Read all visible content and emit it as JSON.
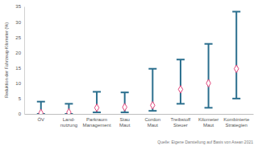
{
  "chart_data": {
    "type": "range",
    "y_label": "Reduktion der Fahrzeug-Kilometer (%)",
    "source": "Quelle: Eigene Darstellung auf Basis von Asean 2021",
    "categories": [
      "ÖV",
      "Land-\nnutzung",
      "Parkraum\nManagement",
      "Stau\nMaut",
      "Cordon\nMaut",
      "Treibstoff\nSteuer",
      "Kilometer\nMaut",
      "Kombinierte\nStrategien"
    ],
    "values": [
      0.3,
      0.5,
      2,
      2.2,
      2.8,
      8,
      10,
      14.7
    ],
    "min": [
      0,
      0,
      0.5,
      0.5,
      1,
      3.3,
      2,
      5
    ],
    "max": [
      4,
      3.3,
      7.2,
      7,
      14.7,
      17.7,
      22.8,
      33.3
    ],
    "color": "#2b6f8e",
    "marker": "diamond",
    "ylim": [
      0,
      35
    ],
    "yticks": [
      0,
      5,
      10,
      15,
      20,
      25,
      30,
      35
    ],
    "grid": false
  }
}
